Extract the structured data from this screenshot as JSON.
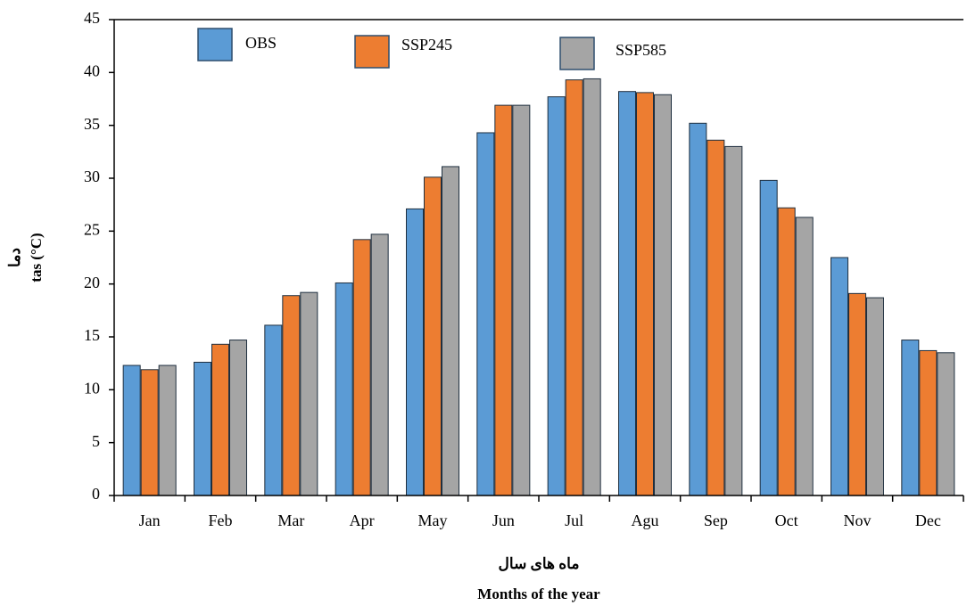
{
  "chart_data": {
    "type": "bar",
    "ylabel_fa": "دما",
    "ylabel": "tas (°C)",
    "xlabel_fa": "ماه های سال",
    "xlabel": "Months of the year",
    "categories": [
      "Jan",
      "Feb",
      "Mar",
      "Apr",
      "May",
      "Jun",
      "Jul",
      "Agu",
      "Sep",
      "Oct",
      "Nov",
      "Dec"
    ],
    "series": [
      {
        "name": "OBS",
        "color": "#5b9bd5",
        "values": [
          12.3,
          12.6,
          16.1,
          20.1,
          27.1,
          34.3,
          37.7,
          38.2,
          35.2,
          29.8,
          22.5,
          14.7
        ]
      },
      {
        "name": "SSP245",
        "color": "#ed7d31",
        "values": [
          11.9,
          14.3,
          18.9,
          24.2,
          30.1,
          36.9,
          39.3,
          38.1,
          33.6,
          27.2,
          19.1,
          13.7
        ]
      },
      {
        "name": "SSP585",
        "color": "#a5a5a5",
        "values": [
          12.3,
          14.7,
          19.2,
          24.7,
          31.1,
          36.9,
          39.4,
          37.9,
          33.0,
          26.3,
          18.7,
          13.5
        ]
      }
    ],
    "ylim": [
      0,
      45
    ],
    "yticks": [
      0,
      5,
      10,
      15,
      20,
      25,
      30,
      35,
      40,
      45
    ],
    "grid": false
  }
}
